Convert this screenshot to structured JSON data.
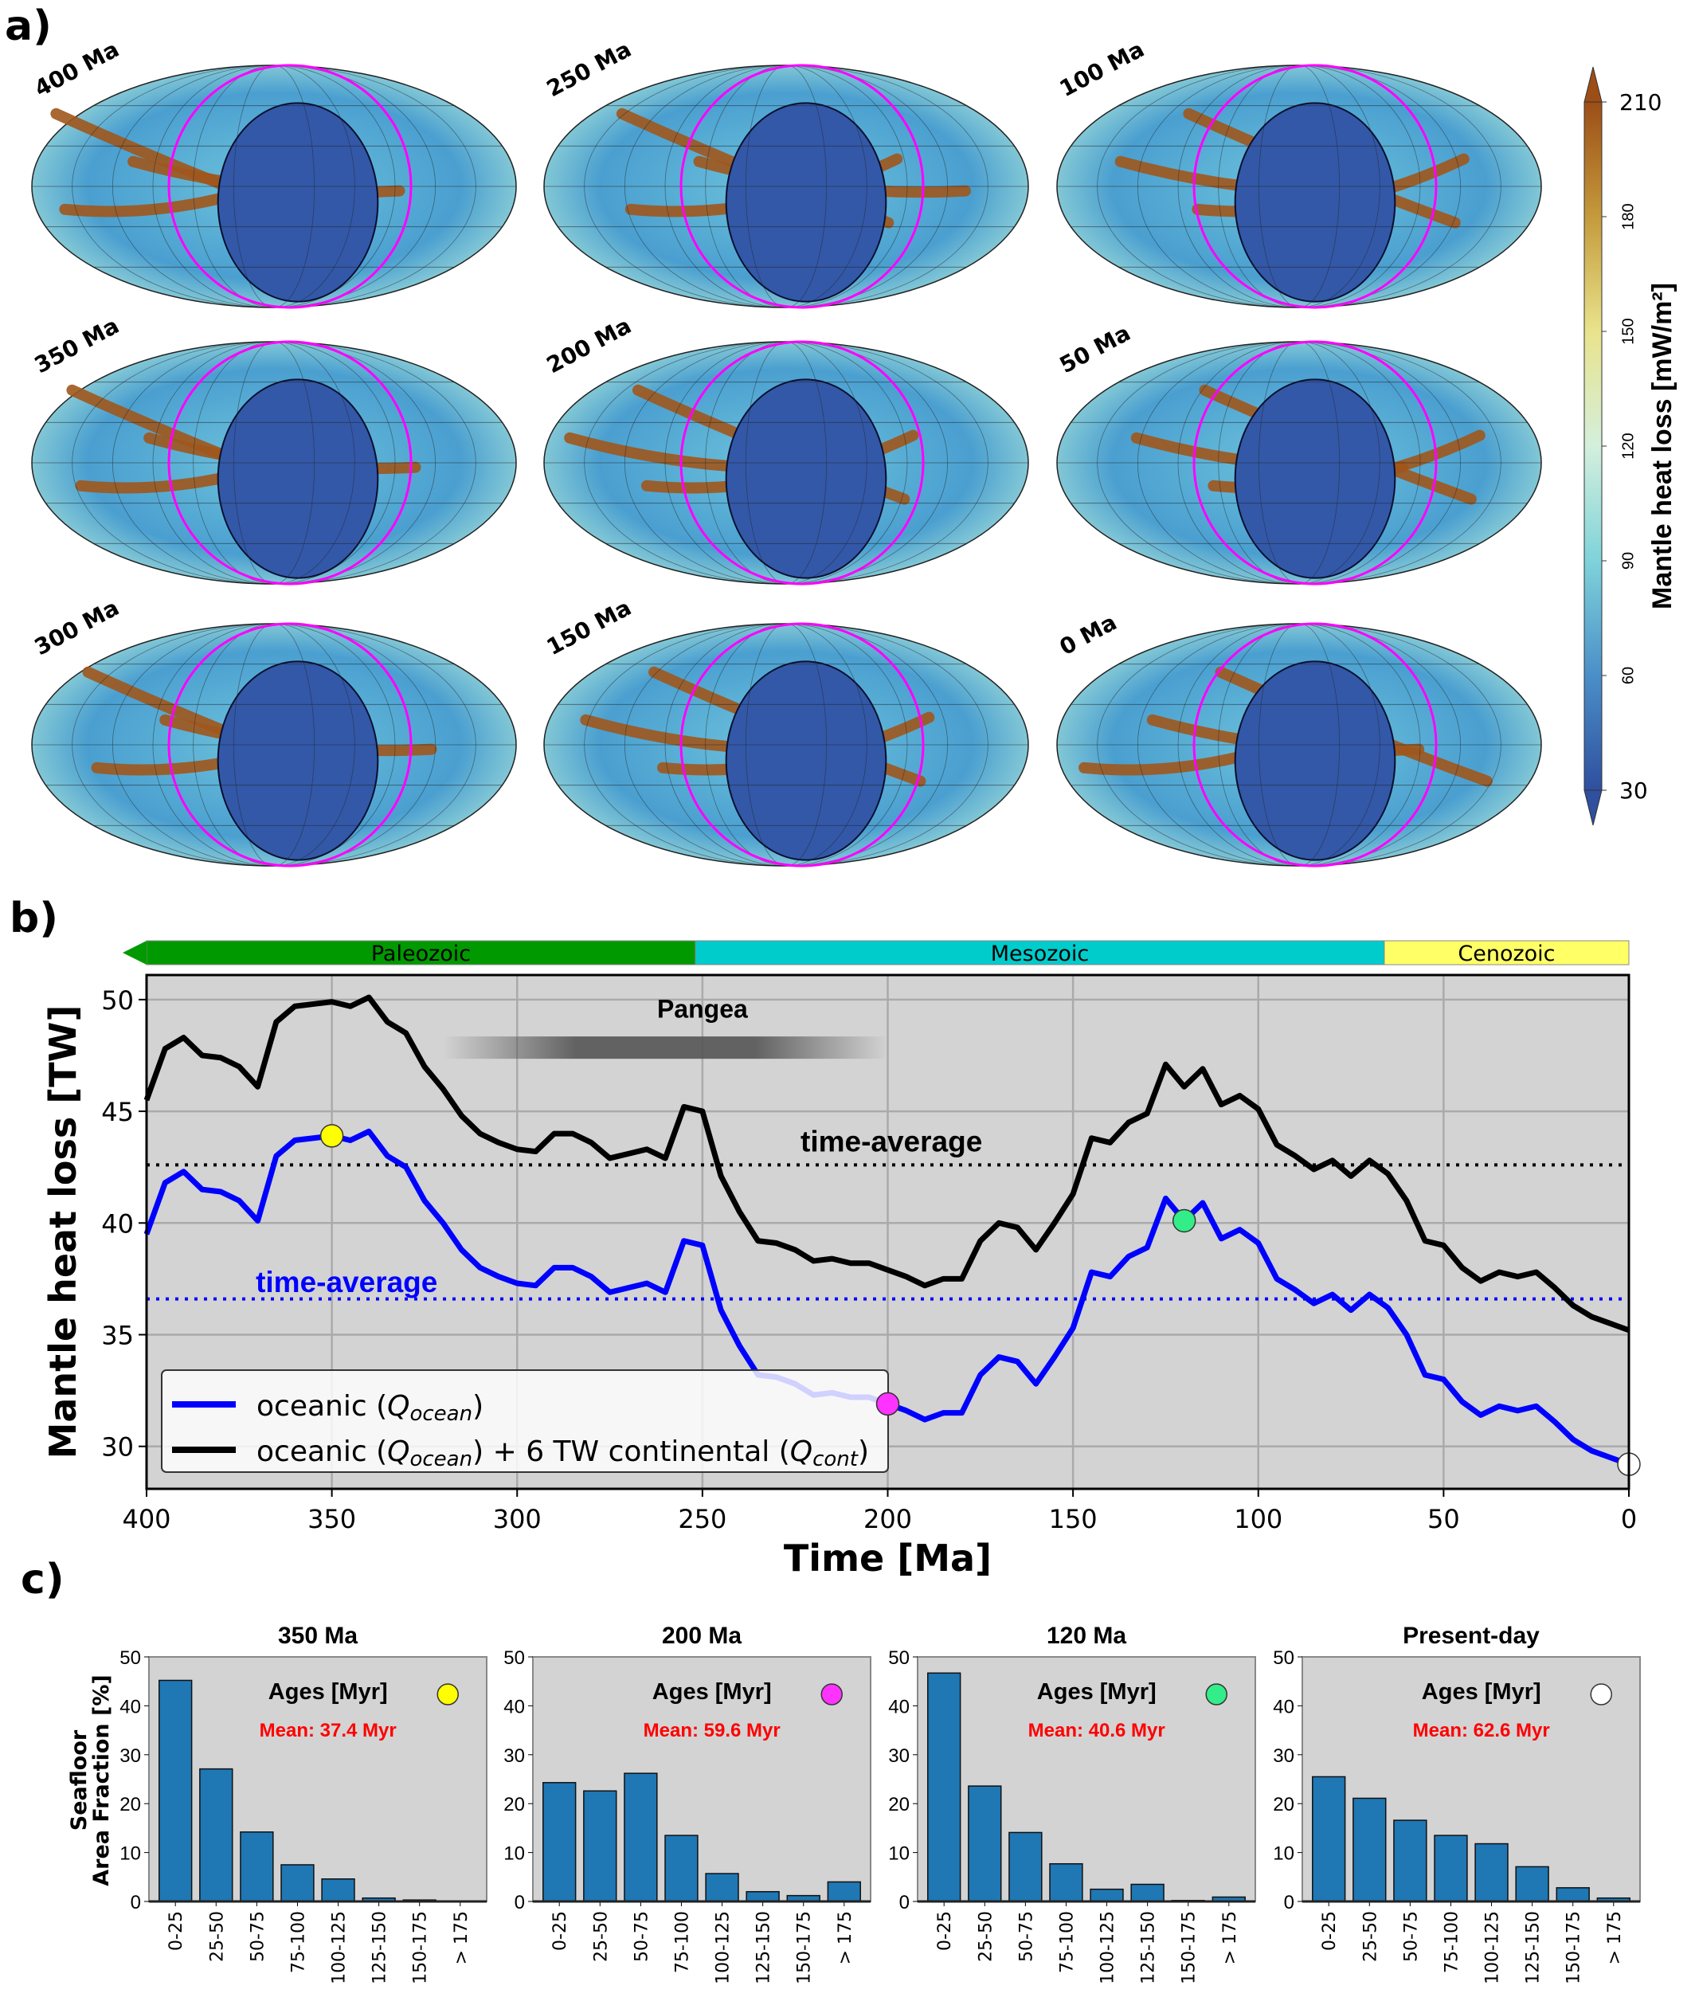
{
  "panel_labels": {
    "a": "a)",
    "b": "b)",
    "c": "c)"
  },
  "maps": {
    "ages": [
      "400 Ma",
      "250 Ma",
      "100 Ma",
      "350 Ma",
      "200 Ma",
      "50 Ma",
      "300 Ma",
      "150 Ma",
      "0 Ma"
    ],
    "outline_color": "#ff00ff",
    "colorbar": {
      "label": "Mantle heat loss [mW/m²]",
      "ticks": [
        "30",
        "60",
        "90",
        "120",
        "150",
        "180",
        "210"
      ],
      "range": [
        30,
        210
      ],
      "colors": [
        "#2f4f9f",
        "#4a8fc8",
        "#7fd3da",
        "#d4efdc",
        "#e9e38c",
        "#c49a3c",
        "#9c4e16"
      ]
    }
  },
  "chart_data": [
    {
      "type": "line",
      "xlabel": "Time [Ma]",
      "ylabel": "Mantle heat loss [TW]",
      "xlim": [
        400,
        0
      ],
      "ylim": [
        28.1,
        51.1
      ],
      "xticks": [
        "400",
        "350",
        "300",
        "250",
        "200",
        "150",
        "100",
        "50",
        "0"
      ],
      "yticks": [
        "30",
        "35",
        "40",
        "45",
        "50"
      ],
      "grid": true,
      "legend_placement": "lower-left",
      "eras": [
        {
          "name": "Paleozoic",
          "from": 400,
          "to": 251.9,
          "color": "#009900"
        },
        {
          "name": "Mesozoic",
          "from": 251.9,
          "to": 66,
          "color": "#00cccc"
        },
        {
          "name": "Cenozoic",
          "from": 66,
          "to": 0,
          "color": "#ffff66"
        }
      ],
      "annotations": {
        "pangea": "Pangea",
        "pangea_span": [
          320,
          200
        ]
      },
      "x": [
        400,
        395,
        390,
        385,
        380,
        375,
        370,
        365,
        360,
        355,
        350,
        345,
        340,
        335,
        330,
        325,
        320,
        315,
        310,
        305,
        300,
        295,
        290,
        285,
        280,
        275,
        270,
        265,
        260,
        255,
        250,
        245,
        240,
        235,
        230,
        225,
        220,
        215,
        210,
        205,
        200,
        195,
        190,
        185,
        180,
        175,
        170,
        165,
        160,
        155,
        150,
        145,
        140,
        135,
        130,
        125,
        120,
        115,
        110,
        105,
        100,
        95,
        90,
        85,
        80,
        75,
        70,
        65,
        60,
        55,
        50,
        45,
        40,
        35,
        30,
        25,
        20,
        15,
        10,
        5,
        0
      ],
      "series": [
        {
          "name": "oceanic (Q_ocean)",
          "legend_main": "oceanic (",
          "legend_sub": "ocean",
          "color": "#0000ff",
          "time_average": 36.6,
          "time_average_label": "time-average",
          "values": [
            39.5,
            41.8,
            42.3,
            41.5,
            41.4,
            41.0,
            40.1,
            43.0,
            43.7,
            43.8,
            43.9,
            43.7,
            44.1,
            43.0,
            42.5,
            41.0,
            40.0,
            38.8,
            38.0,
            37.6,
            37.3,
            37.2,
            38.0,
            38.0,
            37.6,
            36.9,
            37.1,
            37.3,
            36.9,
            39.2,
            39.0,
            36.1,
            34.5,
            33.2,
            33.1,
            32.8,
            32.3,
            32.4,
            32.2,
            32.2,
            31.9,
            31.6,
            31.2,
            31.5,
            31.5,
            33.2,
            34.0,
            33.8,
            32.8,
            34.0,
            35.3,
            37.8,
            37.6,
            38.5,
            38.9,
            41.1,
            40.1,
            40.9,
            39.3,
            39.7,
            39.1,
            37.5,
            37.0,
            36.4,
            36.8,
            36.1,
            36.8,
            36.2,
            35.0,
            33.2,
            33.0,
            32.0,
            31.4,
            31.8,
            31.6,
            31.8,
            31.1,
            30.3,
            29.8,
            29.5,
            29.2
          ]
        },
        {
          "name": "oceanic (Q_ocean) + 6 TW continental (Q_cont)",
          "legend_main": "oceanic (",
          "legend_sub": "ocean",
          "legend_mid": ") + 6 TW continental (",
          "legend_sub2": "cont",
          "color": "#000000",
          "offset": 6,
          "time_average": 42.6,
          "time_average_label": "time-average"
        }
      ],
      "markers": [
        {
          "x": 350,
          "color": "#ffff00"
        },
        {
          "x": 200,
          "color": "#ff33ff"
        },
        {
          "x": 120,
          "color": "#33ee88"
        },
        {
          "x": 0,
          "color": "#ffffff"
        }
      ]
    },
    {
      "type": "bar",
      "title": "350 Ma",
      "legend_title": "Ages [Myr]",
      "mean": "Mean: 37.4 Myr",
      "marker_color": "#ffff00",
      "ylabel_line1": "Seafloor",
      "ylabel_line2": "Area Fraction [%]",
      "ylim": [
        0,
        50
      ],
      "yticks": [
        "0",
        "10",
        "20",
        "30",
        "40",
        "50"
      ],
      "categories": [
        "0-25",
        "25-50",
        "50-75",
        "75-100",
        "100-125",
        "125-150",
        "150-175",
        "> 175"
      ],
      "values": [
        45.2,
        27.1,
        14.2,
        7.5,
        4.6,
        0.7,
        0.3,
        0.0
      ],
      "color": "#1f77b4"
    },
    {
      "type": "bar",
      "title": "200 Ma",
      "legend_title": "Ages [Myr]",
      "mean": "Mean: 59.6 Myr",
      "marker_color": "#ff33ff",
      "ylim": [
        0,
        50
      ],
      "yticks": [
        "0",
        "10",
        "20",
        "30",
        "40",
        "50"
      ],
      "categories": [
        "0-25",
        "25-50",
        "50-75",
        "75-100",
        "100-125",
        "125-150",
        "150-175",
        "> 175"
      ],
      "values": [
        24.3,
        22.6,
        26.2,
        13.5,
        5.7,
        2.0,
        1.2,
        4.0
      ],
      "color": "#1f77b4"
    },
    {
      "type": "bar",
      "title": "120 Ma",
      "legend_title": "Ages [Myr]",
      "mean": "Mean: 40.6 Myr",
      "marker_color": "#33ee88",
      "ylim": [
        0,
        50
      ],
      "yticks": [
        "0",
        "10",
        "20",
        "30",
        "40",
        "50"
      ],
      "categories": [
        "0-25",
        "25-50",
        "50-75",
        "75-100",
        "100-125",
        "125-150",
        "150-175",
        "> 175"
      ],
      "values": [
        46.7,
        23.6,
        14.1,
        7.7,
        2.5,
        3.5,
        0.2,
        0.9
      ],
      "color": "#1f77b4"
    },
    {
      "type": "bar",
      "title": "Present-day",
      "legend_title": "Ages [Myr]",
      "mean": "Mean: 62.6 Myr",
      "marker_color": "#ffffff",
      "ylim": [
        0,
        50
      ],
      "yticks": [
        "0",
        "10",
        "20",
        "30",
        "40",
        "50"
      ],
      "categories": [
        "0-25",
        "25-50",
        "50-75",
        "75-100",
        "100-125",
        "125-150",
        "150-175",
        "> 175"
      ],
      "values": [
        25.5,
        21.1,
        16.6,
        13.5,
        11.8,
        7.1,
        2.8,
        0.7
      ],
      "color": "#1f77b4"
    }
  ]
}
